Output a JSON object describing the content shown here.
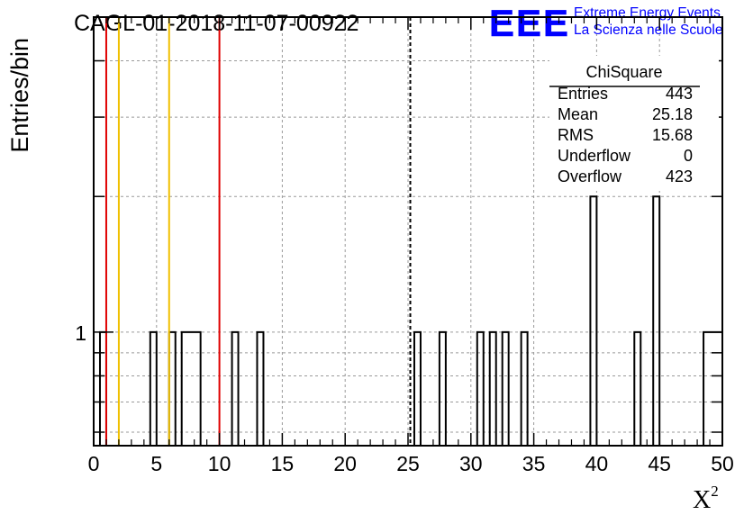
{
  "header": {
    "run_title": "CAGL-01-2018-11-07-00922",
    "logo_text": "EEE",
    "logo_line1": "Extreme Energy Events",
    "logo_line2": "La Scienza nelle Scuole"
  },
  "colors": {
    "frame": "#000000",
    "grid": "#9a9a9a",
    "red_line": "#e00000",
    "yellow_line": "#f0c000",
    "logo_blue": "#0000ff"
  },
  "stats_box": {
    "title": "ChiSquare",
    "rows": [
      {
        "label": "Entries",
        "value": "443"
      },
      {
        "label": "Mean",
        "value": "25.18"
      },
      {
        "label": "RMS",
        "value": "15.68"
      },
      {
        "label": "Underflow",
        "value": "0"
      },
      {
        "label": "Overflow",
        "value": "423"
      }
    ]
  },
  "chart_data": {
    "type": "bar",
    "histogram": "step",
    "ylabel": "Entries/bin",
    "xlabel": "X",
    "xlabel_superscript": "2",
    "xlim": [
      0,
      50
    ],
    "ylim": [
      0.56,
      5
    ],
    "y_scale": "log",
    "grid": true,
    "x_ticks": [
      "0",
      "5",
      "10",
      "15",
      "20",
      "25",
      "30",
      "35",
      "40",
      "45",
      "50"
    ],
    "y_tick_labels": [
      {
        "value": 1,
        "label": "1"
      }
    ],
    "bin_width": 0.5,
    "bins": [
      {
        "x0": 0.5,
        "x1": 1.0,
        "count": 1
      },
      {
        "x0": 4.5,
        "x1": 5.0,
        "count": 1
      },
      {
        "x0": 6.0,
        "x1": 6.5,
        "count": 1
      },
      {
        "x0": 7.0,
        "x1": 8.5,
        "count": 1
      },
      {
        "x0": 11.0,
        "x1": 11.5,
        "count": 1
      },
      {
        "x0": 13.0,
        "x1": 13.5,
        "count": 1
      },
      {
        "x0": 25.5,
        "x1": 26.0,
        "count": 1
      },
      {
        "x0": 27.5,
        "x1": 28.0,
        "count": 1
      },
      {
        "x0": 30.5,
        "x1": 31.0,
        "count": 1
      },
      {
        "x0": 31.5,
        "x1": 32.0,
        "count": 1
      },
      {
        "x0": 32.5,
        "x1": 33.0,
        "count": 1
      },
      {
        "x0": 34.0,
        "x1": 34.5,
        "count": 1
      },
      {
        "x0": 39.5,
        "x1": 40.0,
        "count": 2
      },
      {
        "x0": 43.0,
        "x1": 43.5,
        "count": 1
      },
      {
        "x0": 44.5,
        "x1": 45.0,
        "count": 2
      },
      {
        "x0": 48.5,
        "x1": 50.0,
        "count": 1
      }
    ],
    "vertical_lines": [
      {
        "x": 1,
        "color": "red",
        "style": "solid"
      },
      {
        "x": 2,
        "color": "yellow",
        "style": "solid"
      },
      {
        "x": 6,
        "color": "yellow",
        "style": "solid"
      },
      {
        "x": 10,
        "color": "red",
        "style": "solid"
      },
      {
        "x": 25.18,
        "color": "black",
        "style": "dashed"
      }
    ]
  }
}
